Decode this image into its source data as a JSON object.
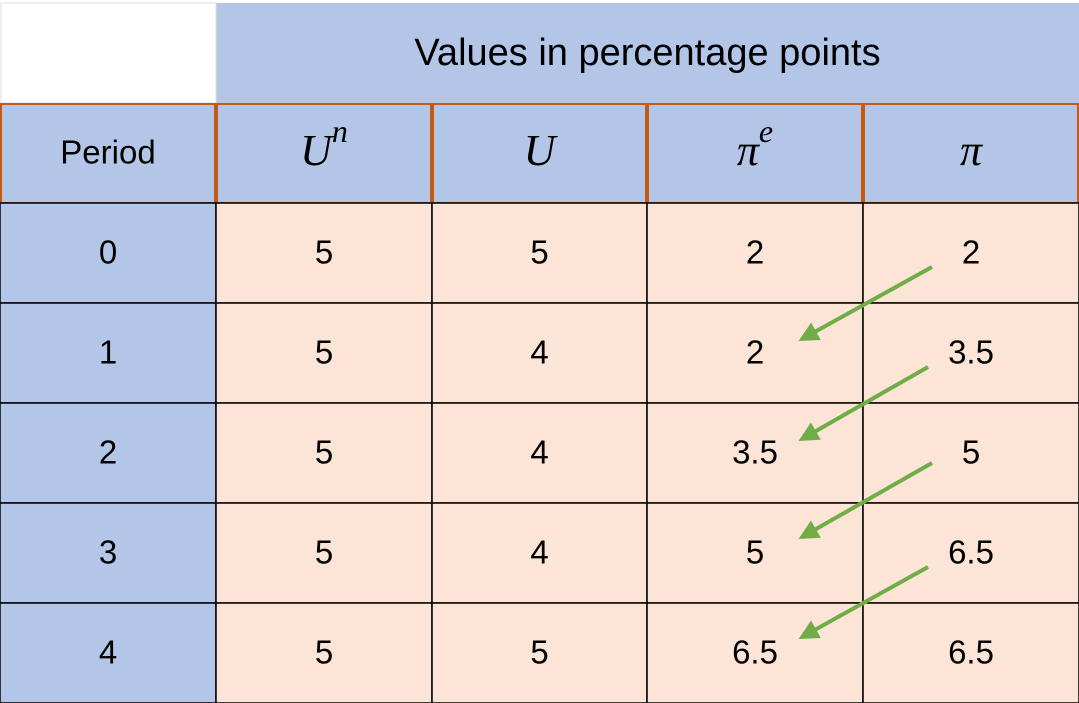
{
  "table": {
    "title": "Values in percentage points",
    "columns": [
      "Period",
      {
        "base": "U",
        "sup": "n"
      },
      "U",
      {
        "base": "π",
        "sup": "e"
      },
      "π"
    ],
    "rows": [
      [
        "0",
        "5",
        "5",
        "2",
        "2"
      ],
      [
        "1",
        "5",
        "4",
        "2",
        "3.5"
      ],
      [
        "2",
        "5",
        "4",
        "3.5",
        "5"
      ],
      [
        "3",
        "5",
        "4",
        "5",
        "6.5"
      ],
      [
        "4",
        "5",
        "5",
        "6.5",
        "6.5"
      ]
    ]
  }
}
